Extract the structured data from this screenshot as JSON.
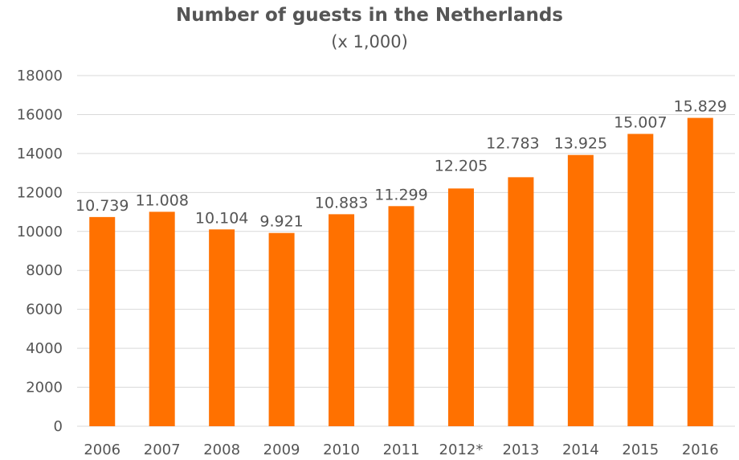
{
  "chart_data": {
    "type": "bar",
    "title": "Number of guests in the Netherlands",
    "subtitle": "(x 1,000)",
    "xlabel": "",
    "ylabel": "",
    "categories": [
      "2006",
      "2007",
      "2008",
      "2009",
      "2010",
      "2011",
      "2012*",
      "2013",
      "2014",
      "2015",
      "2016"
    ],
    "values": [
      10739,
      11008,
      10104,
      9921,
      10883,
      11299,
      12205,
      12783,
      13925,
      15007,
      15829
    ],
    "value_labels": [
      "10.739",
      "11.008",
      "10.104",
      "9.921",
      "10.883",
      "11.299",
      "12.205",
      "12.783",
      "13.925",
      "15.007",
      "15.829"
    ],
    "y_ticks": [
      "0",
      "2000",
      "4000",
      "6000",
      "8000",
      "10000",
      "12000",
      "14000",
      "16000",
      "18000"
    ],
    "ylim": [
      0,
      18000
    ],
    "grid": true,
    "legend": "none",
    "bar_color": "#FF7100"
  }
}
